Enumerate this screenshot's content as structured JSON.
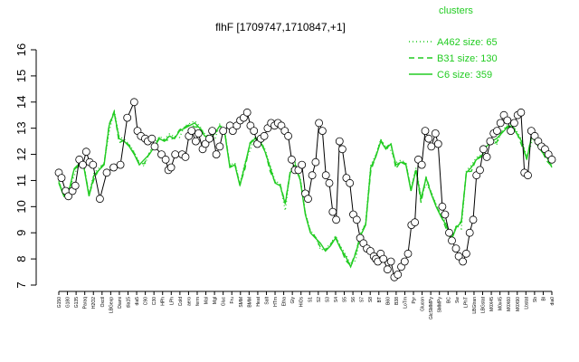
{
  "chart_data": {
    "type": "line",
    "title": "flhF [1709747,1710847,+1]",
    "xlabel": "",
    "ylabel": "",
    "ylim": [
      7,
      16
    ],
    "yticks": [
      7,
      8,
      9,
      10,
      11,
      12,
      13,
      14,
      15,
      16
    ],
    "grid": false,
    "legend_position": "top-right",
    "legend_title": "clusters",
    "series": [
      {
        "name": "A462 size: 65",
        "style": "dotted",
        "color": "#22cc22"
      },
      {
        "name": "B31 size: 130",
        "style": "dashed",
        "color": "#22cc22"
      },
      {
        "name": "C6 size: 359",
        "style": "solid",
        "color": "#22cc22"
      }
    ],
    "x_tick_labels": [
      "G150",
      "G180",
      "G135",
      "Paraq",
      "H2O2",
      "Oxctl",
      "LBGexp",
      "Diami",
      "dia15",
      "dia5",
      "C90",
      "C30",
      "HPh",
      "LPh",
      "Cold",
      "aero",
      "ferm",
      "Mal",
      "Mgl",
      "Gluc",
      "Fru",
      "SMM",
      "BMM",
      "Heat",
      "Salt",
      "HTm",
      "Etha",
      "Gly",
      "HiOs",
      "S1",
      "S2",
      "S3",
      "S4",
      "S5",
      "S6",
      "S7",
      "S8",
      "BT",
      "B60",
      "B38",
      "LoTm",
      "Pyr",
      "Glucon",
      "GlcSMMPy",
      "SMMPy",
      "BC",
      "Sw",
      "LPhT",
      "LBGtran",
      "LBGstat",
      "M0X45",
      "M0x45",
      "M0X60",
      "M0X90",
      "Lbstat",
      "Sb",
      "Bl",
      "dia0"
    ],
    "avg_line": [
      {
        "x": 0,
        "y": 10.9
      },
      {
        "x": 1,
        "y": 10.4
      },
      {
        "x": 2,
        "y": 10.6
      },
      {
        "x": 3,
        "y": 11.4
      },
      {
        "x": 4,
        "y": 11.6
      },
      {
        "x": 5,
        "y": 11.5
      },
      {
        "x": 6,
        "y": 10.4
      },
      {
        "x": 7,
        "y": 11.2
      },
      {
        "x": 8,
        "y": 11.4
      },
      {
        "x": 9,
        "y": 11.6
      },
      {
        "x": 10,
        "y": 13.1
      },
      {
        "x": 11,
        "y": 13.6
      },
      {
        "x": 12,
        "y": 12.6
      },
      {
        "x": 13,
        "y": 12.5
      },
      {
        "x": 14,
        "y": 12.3
      },
      {
        "x": 15,
        "y": 12.0
      },
      {
        "x": 16,
        "y": 11.6
      },
      {
        "x": 17,
        "y": 11.8
      },
      {
        "x": 18,
        "y": 12.0
      },
      {
        "x": 19,
        "y": 12.3
      },
      {
        "x": 20,
        "y": 12.6
      },
      {
        "x": 21,
        "y": 12.5
      },
      {
        "x": 22,
        "y": 12.7
      },
      {
        "x": 23,
        "y": 12.6
      },
      {
        "x": 24,
        "y": 12.9
      },
      {
        "x": 25,
        "y": 13.0
      },
      {
        "x": 26,
        "y": 13.1
      },
      {
        "x": 27,
        "y": 13.2
      },
      {
        "x": 28,
        "y": 13.0
      },
      {
        "x": 29,
        "y": 12.7
      },
      {
        "x": 30,
        "y": 12.6
      },
      {
        "x": 31,
        "y": 12.8
      },
      {
        "x": 32,
        "y": 13.1
      },
      {
        "x": 33,
        "y": 12.8
      },
      {
        "x": 34,
        "y": 11.5
      },
      {
        "x": 35,
        "y": 11.6
      },
      {
        "x": 36,
        "y": 10.8
      },
      {
        "x": 37,
        "y": 11.6
      },
      {
        "x": 38,
        "y": 12.4
      },
      {
        "x": 39,
        "y": 12.6
      },
      {
        "x": 40,
        "y": 12.5
      },
      {
        "x": 41,
        "y": 12.1
      },
      {
        "x": 42,
        "y": 11.5
      },
      {
        "x": 43,
        "y": 10.9
      },
      {
        "x": 44,
        "y": 10.8
      },
      {
        "x": 45,
        "y": 10.1
      },
      {
        "x": 46,
        "y": 11.3
      },
      {
        "x": 47,
        "y": 11.6
      },
      {
        "x": 48,
        "y": 11.0
      },
      {
        "x": 49,
        "y": 9.7
      },
      {
        "x": 50,
        "y": 9.0
      },
      {
        "x": 51,
        "y": 8.8
      },
      {
        "x": 52,
        "y": 8.6
      },
      {
        "x": 53,
        "y": 8.3
      },
      {
        "x": 54,
        "y": 8.5
      },
      {
        "x": 55,
        "y": 8.8
      },
      {
        "x": 56,
        "y": 8.4
      },
      {
        "x": 57,
        "y": 8.1
      },
      {
        "x": 58,
        "y": 7.7
      },
      {
        "x": 59,
        "y": 8.2
      },
      {
        "x": 60,
        "y": 8.9
      },
      {
        "x": 61,
        "y": 9.3
      },
      {
        "x": 62,
        "y": 11.5
      },
      {
        "x": 63,
        "y": 11.9
      },
      {
        "x": 64,
        "y": 12.5
      },
      {
        "x": 65,
        "y": 12.2
      },
      {
        "x": 66,
        "y": 12.4
      },
      {
        "x": 67,
        "y": 11.6
      },
      {
        "x": 68,
        "y": 11.7
      },
      {
        "x": 69,
        "y": 11.6
      },
      {
        "x": 70,
        "y": 10.6
      },
      {
        "x": 71,
        "y": 11.4
      },
      {
        "x": 72,
        "y": 10.3
      },
      {
        "x": 73,
        "y": 11.1
      },
      {
        "x": 74,
        "y": 10.5
      },
      {
        "x": 75,
        "y": 10.0
      },
      {
        "x": 76,
        "y": 9.6
      },
      {
        "x": 77,
        "y": 9.3
      },
      {
        "x": 78,
        "y": 8.7
      },
      {
        "x": 79,
        "y": 9.2
      },
      {
        "x": 80,
        "y": 9.4
      },
      {
        "x": 81,
        "y": 11.3
      },
      {
        "x": 82,
        "y": 11.5
      },
      {
        "x": 83,
        "y": 11.8
      },
      {
        "x": 84,
        "y": 11.9
      },
      {
        "x": 85,
        "y": 12.3
      },
      {
        "x": 86,
        "y": 12.5
      },
      {
        "x": 87,
        "y": 12.6
      },
      {
        "x": 88,
        "y": 12.8
      },
      {
        "x": 89,
        "y": 13.0
      },
      {
        "x": 90,
        "y": 13.1
      },
      {
        "x": 91,
        "y": 12.8
      },
      {
        "x": 92,
        "y": 12.5
      },
      {
        "x": 93,
        "y": 11.8
      },
      {
        "x": 94,
        "y": 12.7
      },
      {
        "x": 95,
        "y": 12.4
      },
      {
        "x": 96,
        "y": 12.1
      },
      {
        "x": 97,
        "y": 11.9
      },
      {
        "x": 98,
        "y": 11.5
      }
    ],
    "circle_points": [
      {
        "x": 0,
        "y": 11.3
      },
      {
        "x": 0.4,
        "y": 11.1
      },
      {
        "x": 1,
        "y": 10.6
      },
      {
        "x": 1.4,
        "y": 10.4
      },
      {
        "x": 2,
        "y": 10.6
      },
      {
        "x": 2.4,
        "y": 10.8
      },
      {
        "x": 3,
        "y": 11.8
      },
      {
        "x": 3.5,
        "y": 11.6
      },
      {
        "x": 4,
        "y": 12.1
      },
      {
        "x": 4.5,
        "y": 11.7
      },
      {
        "x": 5,
        "y": 11.6
      },
      {
        "x": 6,
        "y": 10.3
      },
      {
        "x": 7,
        "y": 11.3
      },
      {
        "x": 8,
        "y": 11.5
      },
      {
        "x": 9,
        "y": 11.6
      },
      {
        "x": 10,
        "y": 13.4
      },
      {
        "x": 11,
        "y": 14.0
      },
      {
        "x": 11.5,
        "y": 12.9
      },
      {
        "x": 12,
        "y": 12.7
      },
      {
        "x": 12.6,
        "y": 12.6
      },
      {
        "x": 13,
        "y": 12.5
      },
      {
        "x": 13.6,
        "y": 12.6
      },
      {
        "x": 14,
        "y": 12.3
      },
      {
        "x": 15,
        "y": 12.0
      },
      {
        "x": 15.6,
        "y": 11.8
      },
      {
        "x": 16,
        "y": 11.4
      },
      {
        "x": 16.4,
        "y": 11.5
      },
      {
        "x": 17,
        "y": 12.0
      },
      {
        "x": 18,
        "y": 12.0
      },
      {
        "x": 18.5,
        "y": 11.9
      },
      {
        "x": 19,
        "y": 12.7
      },
      {
        "x": 19.4,
        "y": 12.9
      },
      {
        "x": 20,
        "y": 12.5
      },
      {
        "x": 20.4,
        "y": 12.8
      },
      {
        "x": 21,
        "y": 12.2
      },
      {
        "x": 21.4,
        "y": 12.4
      },
      {
        "x": 22,
        "y": 12.6
      },
      {
        "x": 22.4,
        "y": 12.9
      },
      {
        "x": 23,
        "y": 12.0
      },
      {
        "x": 23.5,
        "y": 12.3
      },
      {
        "x": 24,
        "y": 12.9
      },
      {
        "x": 25,
        "y": 13.1
      },
      {
        "x": 25.4,
        "y": 12.9
      },
      {
        "x": 26,
        "y": 13.1
      },
      {
        "x": 26.5,
        "y": 13.3
      },
      {
        "x": 27,
        "y": 13.4
      },
      {
        "x": 27.5,
        "y": 13.6
      },
      {
        "x": 28,
        "y": 13.1
      },
      {
        "x": 28.5,
        "y": 12.9
      },
      {
        "x": 29,
        "y": 12.4
      },
      {
        "x": 29.5,
        "y": 12.6
      },
      {
        "x": 30,
        "y": 12.7
      },
      {
        "x": 30.5,
        "y": 13.0
      },
      {
        "x": 31,
        "y": 13.2
      },
      {
        "x": 31.5,
        "y": 13.1
      },
      {
        "x": 32,
        "y": 13.2
      },
      {
        "x": 32.5,
        "y": 13.1
      },
      {
        "x": 33,
        "y": 12.9
      },
      {
        "x": 33.5,
        "y": 12.7
      },
      {
        "x": 34,
        "y": 11.8
      },
      {
        "x": 34.5,
        "y": 11.4
      },
      {
        "x": 35,
        "y": 11.4
      },
      {
        "x": 35.5,
        "y": 11.6
      },
      {
        "x": 36,
        "y": 10.5
      },
      {
        "x": 36.4,
        "y": 10.3
      },
      {
        "x": 37,
        "y": 11.2
      },
      {
        "x": 37.5,
        "y": 11.7
      },
      {
        "x": 38,
        "y": 13.2
      },
      {
        "x": 38.5,
        "y": 12.9
      },
      {
        "x": 39,
        "y": 11.2
      },
      {
        "x": 39.5,
        "y": 10.9
      },
      {
        "x": 40,
        "y": 9.8
      },
      {
        "x": 40.5,
        "y": 9.5
      },
      {
        "x": 41,
        "y": 12.5
      },
      {
        "x": 41.4,
        "y": 12.2
      },
      {
        "x": 42,
        "y": 11.1
      },
      {
        "x": 42.5,
        "y": 10.9
      },
      {
        "x": 43,
        "y": 9.7
      },
      {
        "x": 43.5,
        "y": 9.5
      },
      {
        "x": 44,
        "y": 8.8
      },
      {
        "x": 44.5,
        "y": 8.6
      },
      {
        "x": 45,
        "y": 8.4
      },
      {
        "x": 45.5,
        "y": 8.3
      },
      {
        "x": 46,
        "y": 8.1
      },
      {
        "x": 46.3,
        "y": 8.0
      },
      {
        "x": 46.6,
        "y": 7.9
      },
      {
        "x": 47,
        "y": 8.2
      },
      {
        "x": 47.4,
        "y": 8.0
      },
      {
        "x": 48,
        "y": 7.6
      },
      {
        "x": 48.5,
        "y": 7.9
      },
      {
        "x": 49,
        "y": 7.3
      },
      {
        "x": 49.5,
        "y": 7.4
      },
      {
        "x": 50,
        "y": 7.7
      },
      {
        "x": 50.5,
        "y": 7.9
      },
      {
        "x": 51,
        "y": 8.2
      },
      {
        "x": 51.5,
        "y": 9.3
      },
      {
        "x": 52,
        "y": 9.4
      },
      {
        "x": 52.5,
        "y": 11.8
      },
      {
        "x": 53,
        "y": 11.6
      },
      {
        "x": 53.5,
        "y": 12.9
      },
      {
        "x": 54,
        "y": 12.6
      },
      {
        "x": 54.4,
        "y": 12.3
      },
      {
        "x": 55,
        "y": 12.8
      },
      {
        "x": 55.4,
        "y": 12.4
      },
      {
        "x": 56,
        "y": 10.0
      },
      {
        "x": 56.4,
        "y": 9.7
      },
      {
        "x": 57,
        "y": 9.0
      },
      {
        "x": 57.4,
        "y": 8.7
      },
      {
        "x": 58,
        "y": 8.4
      },
      {
        "x": 58.4,
        "y": 8.1
      },
      {
        "x": 59,
        "y": 7.9
      },
      {
        "x": 59.5,
        "y": 8.2
      },
      {
        "x": 60,
        "y": 9.0
      },
      {
        "x": 60.5,
        "y": 9.5
      },
      {
        "x": 61,
        "y": 11.2
      },
      {
        "x": 61.5,
        "y": 11.4
      },
      {
        "x": 62,
        "y": 12.2
      },
      {
        "x": 62.5,
        "y": 11.9
      },
      {
        "x": 63,
        "y": 12.5
      },
      {
        "x": 63.5,
        "y": 12.8
      },
      {
        "x": 64,
        "y": 12.9
      },
      {
        "x": 64.5,
        "y": 13.2
      },
      {
        "x": 65,
        "y": 13.5
      },
      {
        "x": 65.5,
        "y": 13.3
      },
      {
        "x": 66,
        "y": 12.9
      },
      {
        "x": 66.5,
        "y": 13.2
      },
      {
        "x": 67,
        "y": 13.5
      },
      {
        "x": 67.5,
        "y": 13.6
      },
      {
        "x": 68,
        "y": 11.3
      },
      {
        "x": 68.5,
        "y": 11.2
      },
      {
        "x": 69,
        "y": 12.9
      },
      {
        "x": 69.5,
        "y": 12.7
      },
      {
        "x": 70,
        "y": 12.5
      },
      {
        "x": 70.5,
        "y": 12.3
      },
      {
        "x": 71,
        "y": 12.2
      },
      {
        "x": 71.5,
        "y": 12.0
      },
      {
        "x": 72,
        "y": 11.8
      }
    ]
  }
}
